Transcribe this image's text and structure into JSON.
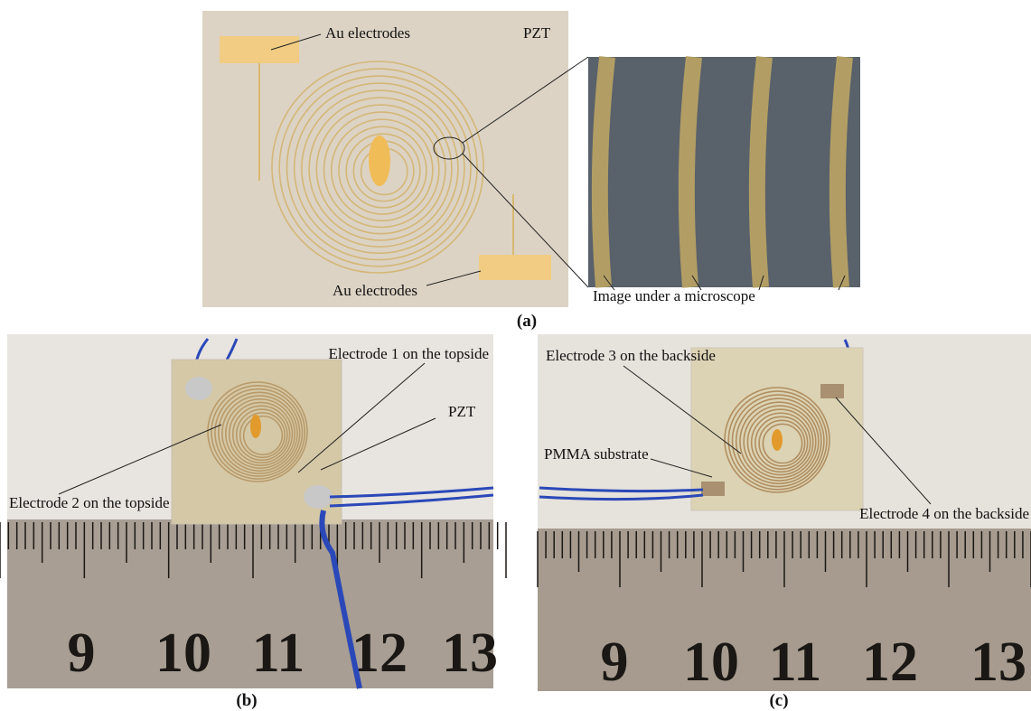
{
  "panel_a": {
    "labels": {
      "au_top": "Au electrodes",
      "pzt": "PZT",
      "au_bottom": "Au electrodes",
      "microscope": "Image under a microscope"
    },
    "caption": "(a)"
  },
  "panel_b": {
    "labels": {
      "electrode1": "Electrode 1 on the topside",
      "pzt": "PZT",
      "electrode2": "Electrode 2 on the topside"
    },
    "ruler_numbers": [
      9,
      10,
      11,
      12,
      13
    ],
    "caption": "(b)"
  },
  "panel_c": {
    "labels": {
      "electrode3": "Electrode 3 on the backside",
      "pmma": "PMMA substrate",
      "electrode4": "Electrode 4 on the backside"
    },
    "ruler_numbers": [
      9,
      10,
      11,
      12,
      13
    ],
    "caption": "(c)"
  }
}
